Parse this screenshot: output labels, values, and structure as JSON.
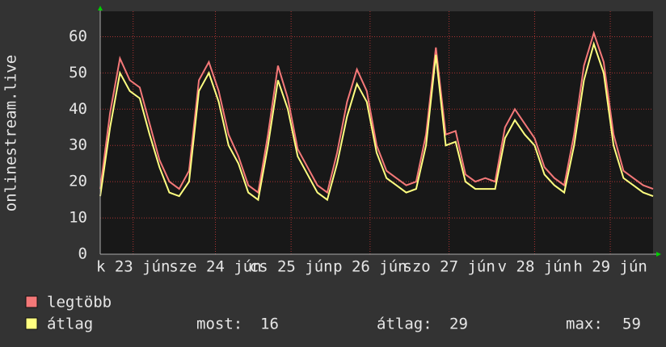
{
  "chart_data": {
    "type": "line",
    "y_label": "onlinestream.live",
    "x": [
      0,
      3,
      6,
      9,
      12,
      15,
      18,
      21,
      24,
      27,
      30,
      33,
      36,
      39,
      42,
      45,
      48,
      51,
      54,
      57,
      60,
      63,
      66,
      69,
      72,
      75,
      78,
      81,
      84,
      87,
      90,
      93,
      96,
      99,
      102,
      105,
      108,
      111,
      114,
      117,
      120,
      123,
      126,
      129,
      132,
      135,
      138,
      141,
      144,
      147,
      150,
      153,
      156,
      159,
      162,
      165,
      168
    ],
    "xlim": [
      0,
      168
    ],
    "xticks": [
      {
        "value": 10,
        "label": "k 23 jún"
      },
      {
        "value": 35,
        "label": "sze 24 jún"
      },
      {
        "value": 58,
        "label": "cs 25 jún"
      },
      {
        "value": 82,
        "label": "p 26 jún"
      },
      {
        "value": 106,
        "label": "szo 27 jún"
      },
      {
        "value": 132,
        "label": "v 28 jún"
      },
      {
        "value": 155,
        "label": "h 29 jún"
      }
    ],
    "ylim": [
      0,
      67
    ],
    "yticks": [
      0,
      10,
      20,
      30,
      40,
      50,
      60
    ],
    "grid": true,
    "series": [
      {
        "name": "legtöbb",
        "color": "#f47878",
        "values": [
          18,
          39,
          54,
          48,
          46,
          36,
          26,
          20,
          18,
          23,
          48,
          53,
          45,
          33,
          27,
          19,
          17,
          33,
          52,
          43,
          29,
          24,
          19,
          17,
          28,
          42,
          51,
          45,
          30,
          23,
          21,
          19,
          20,
          33,
          57,
          33,
          34,
          22,
          20,
          21,
          20,
          35,
          40,
          36,
          32,
          24,
          21,
          19,
          33,
          52,
          61,
          53,
          33,
          23,
          21,
          19,
          18
        ]
      },
      {
        "name": "átlag",
        "color": "#ffff80",
        "values": [
          16,
          35,
          50,
          45,
          43,
          33,
          24,
          17,
          16,
          20,
          45,
          50,
          42,
          30,
          25,
          17,
          15,
          30,
          48,
          40,
          27,
          22,
          17,
          15,
          25,
          38,
          47,
          42,
          28,
          21,
          19,
          17,
          18,
          30,
          55,
          30,
          31,
          20,
          18,
          18,
          18,
          32,
          37,
          33,
          30,
          22,
          19,
          17,
          30,
          48,
          58,
          50,
          30,
          21,
          19,
          17,
          16
        ]
      }
    ],
    "stats": [
      {
        "label": "most:",
        "value": 16
      },
      {
        "label": "átlag:",
        "value": 29
      },
      {
        "label": "max:",
        "value": 59
      }
    ]
  }
}
